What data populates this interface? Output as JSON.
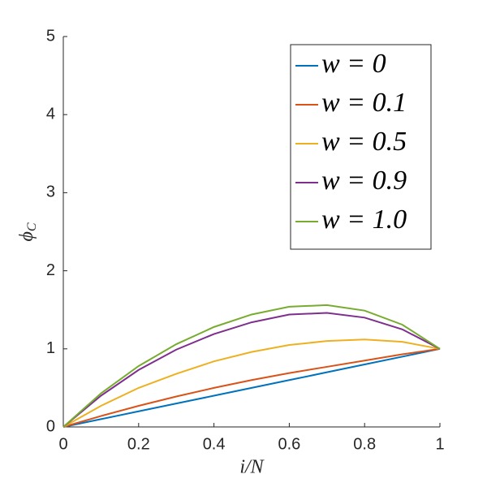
{
  "chart_data": {
    "type": "line",
    "xlabel": "i/N",
    "ylabel": {
      "symbol": "ϕ",
      "subscript": "C"
    },
    "x": [
      0,
      0.1,
      0.2,
      0.3,
      0.4,
      0.5,
      0.6,
      0.7,
      0.8,
      0.9,
      1
    ],
    "series": [
      {
        "name": "w = 0",
        "color": "#0072bd",
        "values": [
          0,
          0.1,
          0.2,
          0.3,
          0.4,
          0.5,
          0.6,
          0.7,
          0.8,
          0.9,
          1.0
        ]
      },
      {
        "name": "w = 0.1",
        "color": "#d95319",
        "values": [
          0,
          0.14,
          0.27,
          0.39,
          0.5,
          0.6,
          0.69,
          0.77,
          0.85,
          0.93,
          1.0
        ]
      },
      {
        "name": "w = 0.5",
        "color": "#edb120",
        "values": [
          0,
          0.27,
          0.5,
          0.68,
          0.84,
          0.96,
          1.05,
          1.1,
          1.12,
          1.09,
          1.0
        ]
      },
      {
        "name": "w = 0.9",
        "color": "#7e2f8e",
        "values": [
          0,
          0.4,
          0.73,
          0.99,
          1.19,
          1.34,
          1.44,
          1.46,
          1.4,
          1.25,
          1.0
        ]
      },
      {
        "name": "w = 1.0",
        "color": "#77ac30",
        "values": [
          0,
          0.43,
          0.78,
          1.06,
          1.28,
          1.44,
          1.54,
          1.56,
          1.49,
          1.31,
          1.0
        ]
      }
    ],
    "xlim": [
      0,
      1
    ],
    "xticks": [
      0,
      0.2,
      0.4,
      0.6,
      0.8,
      1
    ],
    "ylim": [
      0,
      5
    ],
    "yticks": [
      0,
      1,
      2,
      3,
      4,
      5
    ],
    "grid": false,
    "legend": "top-right"
  }
}
